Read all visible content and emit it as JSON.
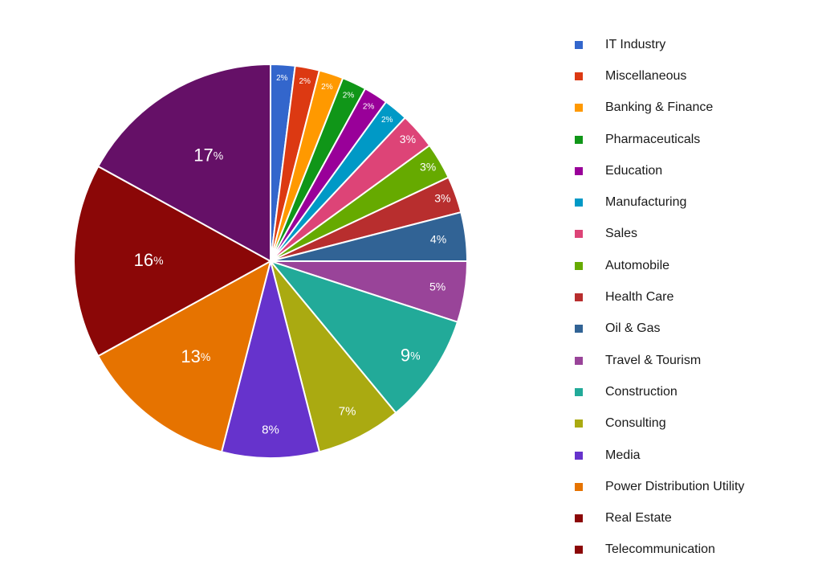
{
  "chart_data": {
    "type": "pie",
    "slices": [
      {
        "label": "IT Industry",
        "value": 2,
        "color": "#3366cc"
      },
      {
        "label": "Miscellaneous",
        "value": 2,
        "color": "#dc3912"
      },
      {
        "label": "Banking & Finance",
        "value": 2,
        "color": "#ff9900"
      },
      {
        "label": "Pharmaceuticals",
        "value": 2,
        "color": "#109618"
      },
      {
        "label": "Education",
        "value": 2,
        "color": "#990099"
      },
      {
        "label": "Manufacturing",
        "value": 2,
        "color": "#0099c6"
      },
      {
        "label": "Sales",
        "value": 3,
        "color": "#dd4477"
      },
      {
        "label": "Automobile",
        "value": 3,
        "color": "#66aa00"
      },
      {
        "label": "Health Care",
        "value": 3,
        "color": "#b82e2e"
      },
      {
        "label": "Oil & Gas",
        "value": 4,
        "color": "#316395"
      },
      {
        "label": "Travel & Tourism",
        "value": 5,
        "color": "#994499"
      },
      {
        "label": "Construction",
        "value": 9,
        "color": "#22aa99"
      },
      {
        "label": "Consulting",
        "value": 7,
        "color": "#aaaa11"
      },
      {
        "label": "Media",
        "value": 8,
        "color": "#6633cc"
      },
      {
        "label": "Power Distribution Utility",
        "value": 13,
        "color": "#e67300"
      },
      {
        "label": "Real Estate",
        "value": 16,
        "color": "#8b0707"
      },
      {
        "label": "Telecommunication",
        "value": 17,
        "color": "#651067"
      }
    ],
    "legend_colors": [
      "#3366cc",
      "#dc3912",
      "#ff9900",
      "#109618",
      "#990099",
      "#0099c6",
      "#dd4477",
      "#66aa00",
      "#b82e2e",
      "#316395",
      "#994499",
      "#22aa99",
      "#aaaa11",
      "#6633cc",
      "#e67300",
      "#8b0707",
      "#8b0707"
    ],
    "unit": "%",
    "legend_position": "right"
  }
}
